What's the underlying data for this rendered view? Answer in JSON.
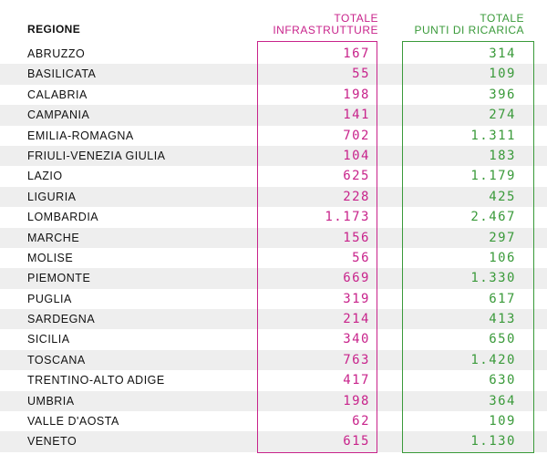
{
  "header": {
    "regione": "REGIONE",
    "infra_line1": "TOTALE",
    "infra_line2": "INFRASTRUTTURE",
    "punti_line1": "TOTALE",
    "punti_line2": "PUNTI DI RICARICA"
  },
  "colors": {
    "infra": "#c8238b",
    "punti": "#3a9a3a",
    "row_shade": "#eeeeee"
  },
  "rows": [
    {
      "regione": "ABRUZZO",
      "infrastrutture": "167",
      "punti": "314"
    },
    {
      "regione": "BASILICATA",
      "infrastrutture": "55",
      "punti": "109"
    },
    {
      "regione": "CALABRIA",
      "infrastrutture": "198",
      "punti": "396"
    },
    {
      "regione": "CAMPANIA",
      "infrastrutture": "141",
      "punti": "274"
    },
    {
      "regione": "EMILIA-ROMAGNA",
      "infrastrutture": "702",
      "punti": "1.311"
    },
    {
      "regione": "FRIULI-VENEZIA GIULIA",
      "infrastrutture": "104",
      "punti": "183"
    },
    {
      "regione": "LAZIO",
      "infrastrutture": "625",
      "punti": "1.179"
    },
    {
      "regione": "LIGURIA",
      "infrastrutture": "228",
      "punti": "425"
    },
    {
      "regione": "LOMBARDIA",
      "infrastrutture": "1.173",
      "punti": "2.467"
    },
    {
      "regione": "MARCHE",
      "infrastrutture": "156",
      "punti": "297"
    },
    {
      "regione": "MOLISE",
      "infrastrutture": "56",
      "punti": "106"
    },
    {
      "regione": "PIEMONTE",
      "infrastrutture": "669",
      "punti": "1.330"
    },
    {
      "regione": "PUGLIA",
      "infrastrutture": "319",
      "punti": "617"
    },
    {
      "regione": "SARDEGNA",
      "infrastrutture": "214",
      "punti": "413"
    },
    {
      "regione": "SICILIA",
      "infrastrutture": "340",
      "punti": "650"
    },
    {
      "regione": "TOSCANA",
      "infrastrutture": "763",
      "punti": "1.420"
    },
    {
      "regione": "TRENTINO-ALTO ADIGE",
      "infrastrutture": "417",
      "punti": "630"
    },
    {
      "regione": "UMBRIA",
      "infrastrutture": "198",
      "punti": "364"
    },
    {
      "regione": "VALLE D'AOSTA",
      "infrastrutture": "62",
      "punti": "109"
    },
    {
      "regione": "VENETO",
      "infrastrutture": "615",
      "punti": "1.130"
    }
  ]
}
